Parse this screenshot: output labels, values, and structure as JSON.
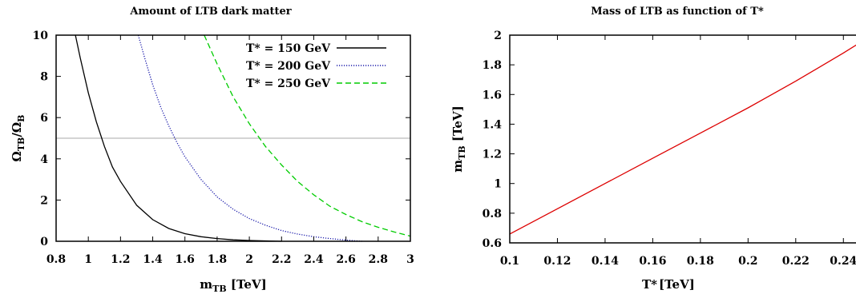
{
  "chart_data": [
    {
      "type": "line",
      "title": "Amount of LTB dark matter",
      "xlabel": {
        "main": "m",
        "sub": "TB",
        "unit": " [TeV]"
      },
      "ylabel": {
        "main": "Ω",
        "sub": "TB",
        "slash": "/Ω",
        "sub2": "B"
      },
      "xlim": [
        0.8,
        3
      ],
      "ylim": [
        0,
        10
      ],
      "xticks": [
        "0.8",
        "1",
        "1.2",
        "1.4",
        "1.6",
        "1.8",
        "2",
        "2.2",
        "2.4",
        "2.6",
        "2.8",
        "3"
      ],
      "yticks": [
        "0",
        "2",
        "4",
        "6",
        "8",
        "10"
      ],
      "legend_position": "top-right",
      "reference_line": {
        "y": 5,
        "color": "#aaaaaa"
      },
      "series": [
        {
          "name": "T* = 150 GeV",
          "color": "#000000",
          "dash": "solid",
          "x": [
            0.92,
            0.95,
            1.0,
            1.05,
            1.1,
            1.15,
            1.2,
            1.3,
            1.4,
            1.5,
            1.6,
            1.7,
            1.8,
            1.9,
            2.0,
            2.1,
            2.2
          ],
          "y": [
            10.0,
            8.9,
            7.2,
            5.8,
            4.6,
            3.6,
            2.9,
            1.75,
            1.05,
            0.62,
            0.37,
            0.22,
            0.13,
            0.07,
            0.04,
            0.02,
            0.0
          ]
        },
        {
          "name": "T* = 200 GeV",
          "color": "#1a1aaa",
          "dash": "dotted",
          "x": [
            1.31,
            1.35,
            1.4,
            1.45,
            1.5,
            1.55,
            1.6,
            1.7,
            1.8,
            1.9,
            2.0,
            2.1,
            2.2,
            2.3,
            2.4,
            2.5,
            2.6,
            2.7
          ],
          "y": [
            10.0,
            8.9,
            7.6,
            6.5,
            5.6,
            4.8,
            4.1,
            3.0,
            2.15,
            1.55,
            1.1,
            0.78,
            0.52,
            0.35,
            0.22,
            0.13,
            0.06,
            0.0
          ]
        },
        {
          "name": "T* = 250 GeV",
          "color": "#00cc00",
          "dash": "dashed",
          "x": [
            1.72,
            1.8,
            1.9,
            2.0,
            2.1,
            2.2,
            2.3,
            2.4,
            2.5,
            2.6,
            2.7,
            2.8,
            2.9,
            3.0
          ],
          "y": [
            10.0,
            8.6,
            7.0,
            5.7,
            4.6,
            3.7,
            2.9,
            2.25,
            1.7,
            1.3,
            0.95,
            0.68,
            0.45,
            0.25
          ]
        }
      ]
    },
    {
      "type": "line",
      "title": "Mass of LTB as function of T*",
      "xlabel": {
        "main": "T*",
        "unit": "[TeV]"
      },
      "ylabel": {
        "main": "m",
        "sub": "TB",
        "unit": " [TeV]"
      },
      "xlim": [
        0.1,
        0.25
      ],
      "ylim": [
        0.6,
        2
      ],
      "xticks": [
        "0.1",
        "0.12",
        "0.14",
        "0.16",
        "0.18",
        "0.2",
        "0.22",
        "0.24"
      ],
      "yticks": [
        "0.6",
        "0.8",
        "1",
        "1.2",
        "1.4",
        "1.6",
        "1.8",
        "2"
      ],
      "series": [
        {
          "color": "#dd0000",
          "dash": "solid",
          "x": [
            0.1,
            0.12,
            0.14,
            0.16,
            0.18,
            0.2,
            0.22,
            0.24,
            0.25
          ],
          "y": [
            0.66,
            0.83,
            1.0,
            1.17,
            1.34,
            1.51,
            1.69,
            1.88,
            1.98
          ]
        }
      ]
    }
  ]
}
